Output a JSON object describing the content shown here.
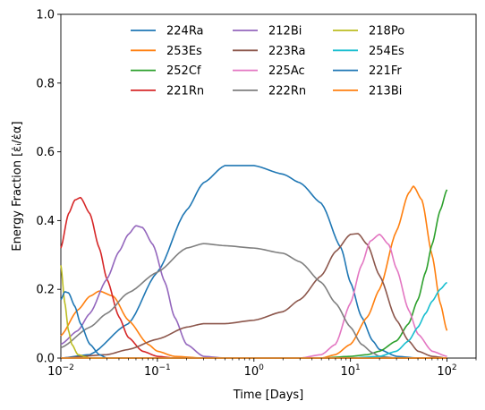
{
  "chart_data": {
    "type": "line",
    "xlabel": "Time [Days]",
    "ylabel": "Energy Fraction [ε̇ᵢ/ε̇α]",
    "xscale": "log",
    "xlim": [
      0.01,
      200
    ],
    "ylim": [
      0.0,
      1.0
    ],
    "x_ticks": [
      {
        "value": 0.01,
        "base": "10",
        "exp": "−2"
      },
      {
        "value": 0.1,
        "base": "10",
        "exp": "−1"
      },
      {
        "value": 1,
        "base": "10",
        "exp": "0"
      },
      {
        "value": 10,
        "base": "10",
        "exp": "1"
      },
      {
        "value": 100,
        "base": "10",
        "exp": "2"
      }
    ],
    "y_ticks": [
      "0.0",
      "0.2",
      "0.4",
      "0.6",
      "0.8",
      "1.0"
    ],
    "grid": false,
    "legend": {
      "placement": "top-center",
      "columns": 3
    },
    "series": [
      {
        "name": "224Ra",
        "color": "#1f77b4",
        "points": [
          [
            0.01,
            0.0
          ],
          [
            0.02,
            0.01
          ],
          [
            0.05,
            0.1
          ],
          [
            0.1,
            0.25
          ],
          [
            0.2,
            0.43
          ],
          [
            0.3,
            0.51
          ],
          [
            0.5,
            0.56
          ],
          [
            1,
            0.56
          ],
          [
            2,
            0.535
          ],
          [
            3,
            0.51
          ],
          [
            5,
            0.45
          ],
          [
            8,
            0.32
          ],
          [
            10,
            0.22
          ],
          [
            13,
            0.12
          ],
          [
            17,
            0.05
          ],
          [
            20,
            0.025
          ],
          [
            30,
            0.005
          ],
          [
            50,
            0.0
          ],
          [
            100,
            0.0
          ]
        ]
      },
      {
        "name": "253Es",
        "color": "#ff7f0e",
        "points": [
          [
            0.01,
            0.065
          ],
          [
            0.015,
            0.14
          ],
          [
            0.02,
            0.18
          ],
          [
            0.025,
            0.195
          ],
          [
            0.035,
            0.18
          ],
          [
            0.05,
            0.11
          ],
          [
            0.08,
            0.04
          ],
          [
            0.1,
            0.02
          ],
          [
            0.15,
            0.005
          ],
          [
            0.3,
            0.0
          ],
          [
            5,
            0.0
          ],
          [
            7,
            0.01
          ],
          [
            10,
            0.04
          ],
          [
            15,
            0.12
          ],
          [
            20,
            0.2
          ],
          [
            30,
            0.37
          ],
          [
            40,
            0.48
          ],
          [
            45,
            0.5
          ],
          [
            55,
            0.46
          ],
          [
            70,
            0.3
          ],
          [
            85,
            0.16
          ],
          [
            100,
            0.08
          ]
        ]
      },
      {
        "name": "252Cf",
        "color": "#2ca02c",
        "points": [
          [
            0.01,
            0.0
          ],
          [
            5,
            0.0
          ],
          [
            10,
            0.005
          ],
          [
            15,
            0.01
          ],
          [
            20,
            0.02
          ],
          [
            30,
            0.05
          ],
          [
            40,
            0.1
          ],
          [
            50,
            0.17
          ],
          [
            60,
            0.25
          ],
          [
            70,
            0.33
          ],
          [
            85,
            0.43
          ],
          [
            100,
            0.49
          ]
        ]
      },
      {
        "name": "221Rn",
        "color": "#d62728",
        "points": [
          [
            0.01,
            0.32
          ],
          [
            0.012,
            0.42
          ],
          [
            0.014,
            0.46
          ],
          [
            0.016,
            0.467
          ],
          [
            0.02,
            0.42
          ],
          [
            0.025,
            0.32
          ],
          [
            0.03,
            0.23
          ],
          [
            0.04,
            0.12
          ],
          [
            0.05,
            0.06
          ],
          [
            0.07,
            0.02
          ],
          [
            0.1,
            0.005
          ],
          [
            0.15,
            0.0
          ],
          [
            100,
            0.0
          ]
        ]
      },
      {
        "name": "212Bi",
        "color": "#9467bd",
        "points": [
          [
            0.01,
            0.04
          ],
          [
            0.015,
            0.08
          ],
          [
            0.02,
            0.13
          ],
          [
            0.03,
            0.23
          ],
          [
            0.04,
            0.31
          ],
          [
            0.05,
            0.36
          ],
          [
            0.06,
            0.385
          ],
          [
            0.07,
            0.38
          ],
          [
            0.09,
            0.33
          ],
          [
            0.12,
            0.22
          ],
          [
            0.15,
            0.12
          ],
          [
            0.2,
            0.04
          ],
          [
            0.3,
            0.005
          ],
          [
            0.5,
            0.0
          ],
          [
            100,
            0.0
          ]
        ]
      },
      {
        "name": "223Ra",
        "color": "#8c564b",
        "points": [
          [
            0.01,
            0.0
          ],
          [
            0.03,
            0.01
          ],
          [
            0.05,
            0.025
          ],
          [
            0.1,
            0.055
          ],
          [
            0.2,
            0.09
          ],
          [
            0.3,
            0.1
          ],
          [
            0.5,
            0.1
          ],
          [
            1,
            0.11
          ],
          [
            2,
            0.135
          ],
          [
            3,
            0.17
          ],
          [
            5,
            0.24
          ],
          [
            7,
            0.31
          ],
          [
            10,
            0.36
          ],
          [
            12,
            0.362
          ],
          [
            15,
            0.33
          ],
          [
            20,
            0.24
          ],
          [
            30,
            0.11
          ],
          [
            40,
            0.05
          ],
          [
            50,
            0.02
          ],
          [
            70,
            0.005
          ],
          [
            100,
            0.0
          ]
        ]
      },
      {
        "name": "225Ac",
        "color": "#e377c2",
        "points": [
          [
            0.01,
            0.0
          ],
          [
            3,
            0.0
          ],
          [
            5,
            0.01
          ],
          [
            7,
            0.04
          ],
          [
            10,
            0.16
          ],
          [
            13,
            0.27
          ],
          [
            16,
            0.34
          ],
          [
            20,
            0.36
          ],
          [
            25,
            0.33
          ],
          [
            30,
            0.26
          ],
          [
            40,
            0.14
          ],
          [
            50,
            0.07
          ],
          [
            70,
            0.02
          ],
          [
            100,
            0.005
          ]
        ]
      },
      {
        "name": "222Rn",
        "color": "#7f7f7f",
        "points": [
          [
            0.01,
            0.03
          ],
          [
            0.02,
            0.09
          ],
          [
            0.03,
            0.13
          ],
          [
            0.05,
            0.19
          ],
          [
            0.1,
            0.25
          ],
          [
            0.2,
            0.32
          ],
          [
            0.3,
            0.333
          ],
          [
            0.5,
            0.327
          ],
          [
            1,
            0.32
          ],
          [
            2,
            0.305
          ],
          [
            3,
            0.28
          ],
          [
            5,
            0.22
          ],
          [
            7,
            0.16
          ],
          [
            10,
            0.09
          ],
          [
            13,
            0.04
          ],
          [
            17,
            0.015
          ],
          [
            20,
            0.005
          ],
          [
            30,
            0.0
          ],
          [
            100,
            0.0
          ]
        ]
      },
      {
        "name": "218Po",
        "color": "#bcbd22",
        "points": [
          [
            0.01,
            0.27
          ],
          [
            0.011,
            0.16
          ],
          [
            0.012,
            0.08
          ],
          [
            0.013,
            0.04
          ],
          [
            0.015,
            0.01
          ],
          [
            0.02,
            0.0
          ],
          [
            100,
            0.0
          ]
        ]
      },
      {
        "name": "254Es",
        "color": "#17becf",
        "points": [
          [
            0.01,
            0.0
          ],
          [
            10,
            0.0
          ],
          [
            20,
            0.005
          ],
          [
            30,
            0.02
          ],
          [
            40,
            0.05
          ],
          [
            50,
            0.09
          ],
          [
            60,
            0.13
          ],
          [
            70,
            0.165
          ],
          [
            85,
            0.2
          ],
          [
            100,
            0.22
          ]
        ]
      },
      {
        "name": "221Fr",
        "color": "#1f77b4",
        "points": [
          [
            0.01,
            0.17
          ],
          [
            0.011,
            0.193
          ],
          [
            0.012,
            0.19
          ],
          [
            0.014,
            0.15
          ],
          [
            0.016,
            0.1
          ],
          [
            0.02,
            0.04
          ],
          [
            0.025,
            0.01
          ],
          [
            0.03,
            0.0
          ],
          [
            100,
            0.0
          ]
        ]
      },
      {
        "name": "213Bi",
        "color": "#ff7f0e",
        "points": [
          [
            0.01,
            0.0
          ],
          [
            100,
            0.0
          ]
        ]
      }
    ]
  }
}
